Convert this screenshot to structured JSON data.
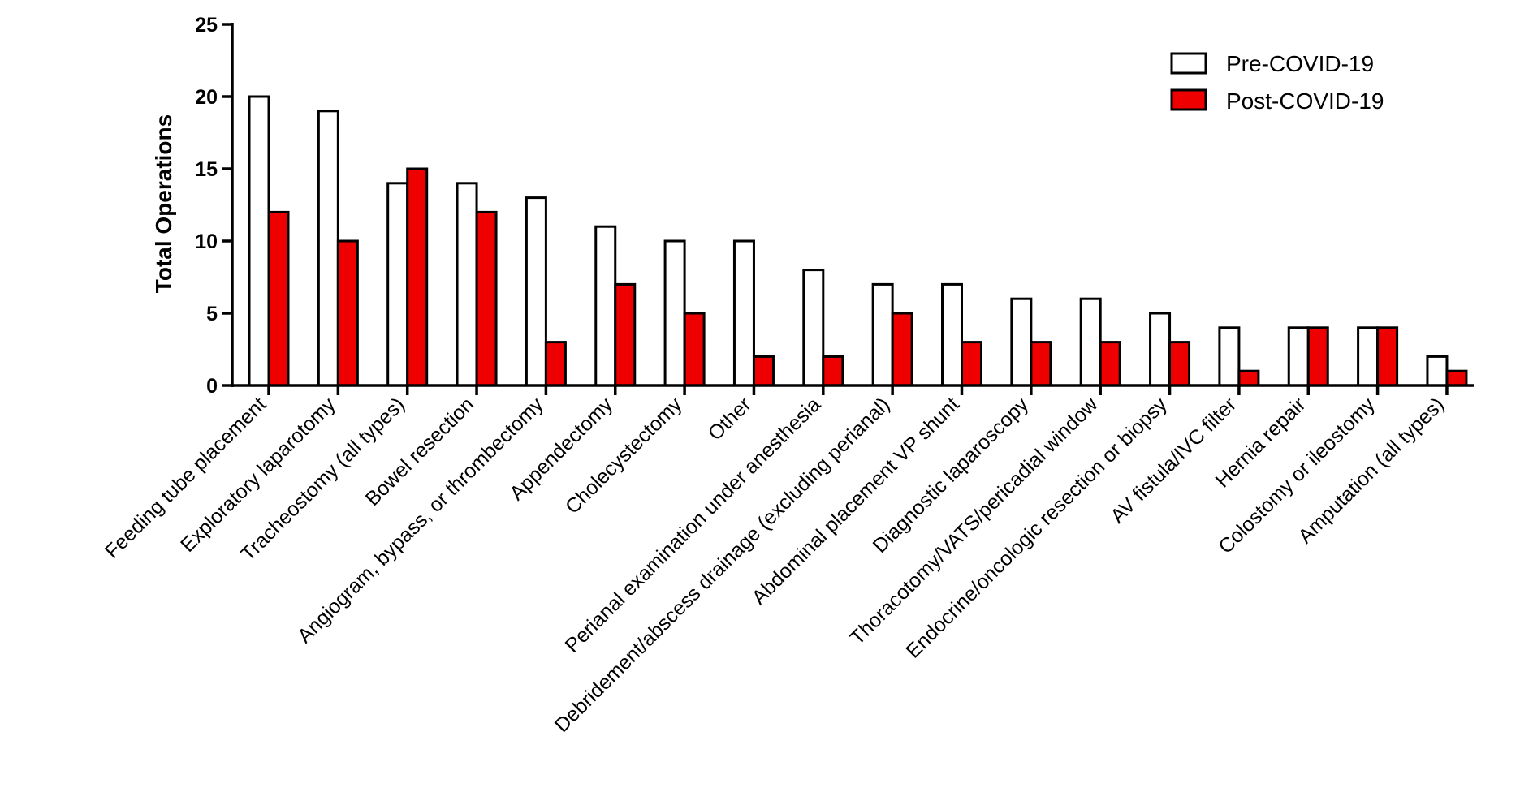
{
  "chart_data": {
    "type": "bar",
    "title": "",
    "xlabel": "",
    "ylabel": "Total Operations",
    "ylim": [
      0,
      25
    ],
    "yticks": [
      0,
      5,
      10,
      15,
      20,
      25
    ],
    "grid": false,
    "legend_position": "top-right",
    "categories": [
      "Feeding tube placement",
      "Exploratory laparotomy",
      "Tracheostomy (all types)",
      "Bowel resection",
      "Angiogram, bypass, or thrombectomy",
      "Appendectomy",
      "Cholecystectomy",
      "Other",
      "Perianal examination under anesthesia",
      "Debridement/abscess drainage (excluding perianal)",
      "Abdominal placement VP shunt",
      "Diagnostic laparoscopy",
      "Thoracotomy/VATS/pericadial window",
      "Endocrine/oncologic resection or biopsy",
      "AV fistula/IVC filter",
      "Hernia repair",
      "Colostomy or ileostomy",
      "Amputation (all types)"
    ],
    "series": [
      {
        "name": "Pre-COVID-19",
        "color": "#ffffff",
        "values": [
          20,
          19,
          14,
          14,
          13,
          11,
          10,
          10,
          8,
          7,
          7,
          6,
          6,
          5,
          4,
          4,
          4,
          2
        ]
      },
      {
        "name": "Post-COVID-19",
        "color": "#ee0000",
        "values": [
          12,
          10,
          15,
          12,
          3,
          7,
          5,
          2,
          2,
          5,
          3,
          3,
          3,
          3,
          1,
          4,
          4,
          1
        ]
      }
    ]
  }
}
